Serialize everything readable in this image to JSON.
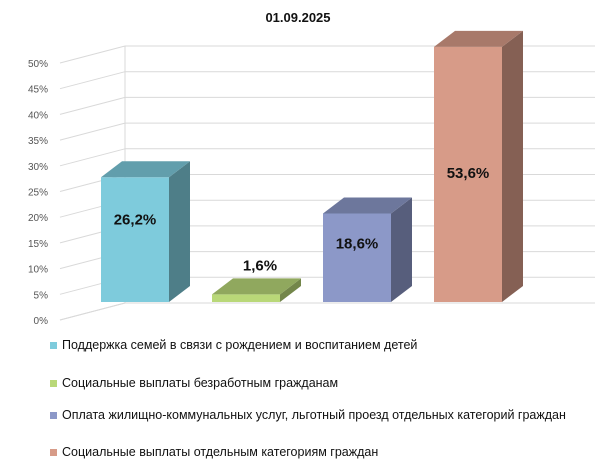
{
  "chart_data": {
    "type": "bar",
    "title": "01.09.2025",
    "ylim": [
      0,
      50
    ],
    "yticks": [
      "0%",
      "5%",
      "10%",
      "15%",
      "20%",
      "25%",
      "30%",
      "35%",
      "40%",
      "45%",
      "50%"
    ],
    "ytick_values": [
      0,
      5,
      10,
      15,
      20,
      25,
      30,
      35,
      40,
      45,
      50
    ],
    "grid": true,
    "legend_position": "bottom",
    "categories": [
      "Поддержка семей в связи с рождением и воспитанием детей",
      "Социальные выплаты безработным гражданам",
      "Оплата жилищно-коммунальных услуг, льготный проезд отдельных категорий граждан",
      "Социальные выплаты отдельным категориям граждан"
    ],
    "values": [
      26.2,
      1.6,
      18.6,
      53.6
    ],
    "data_labels": [
      "26,2%",
      "1,6%",
      "18,6%",
      "53,6%"
    ],
    "colors": [
      "#7ecbdc",
      "#b9d878",
      "#8c98c8",
      "#d79b88"
    ]
  }
}
